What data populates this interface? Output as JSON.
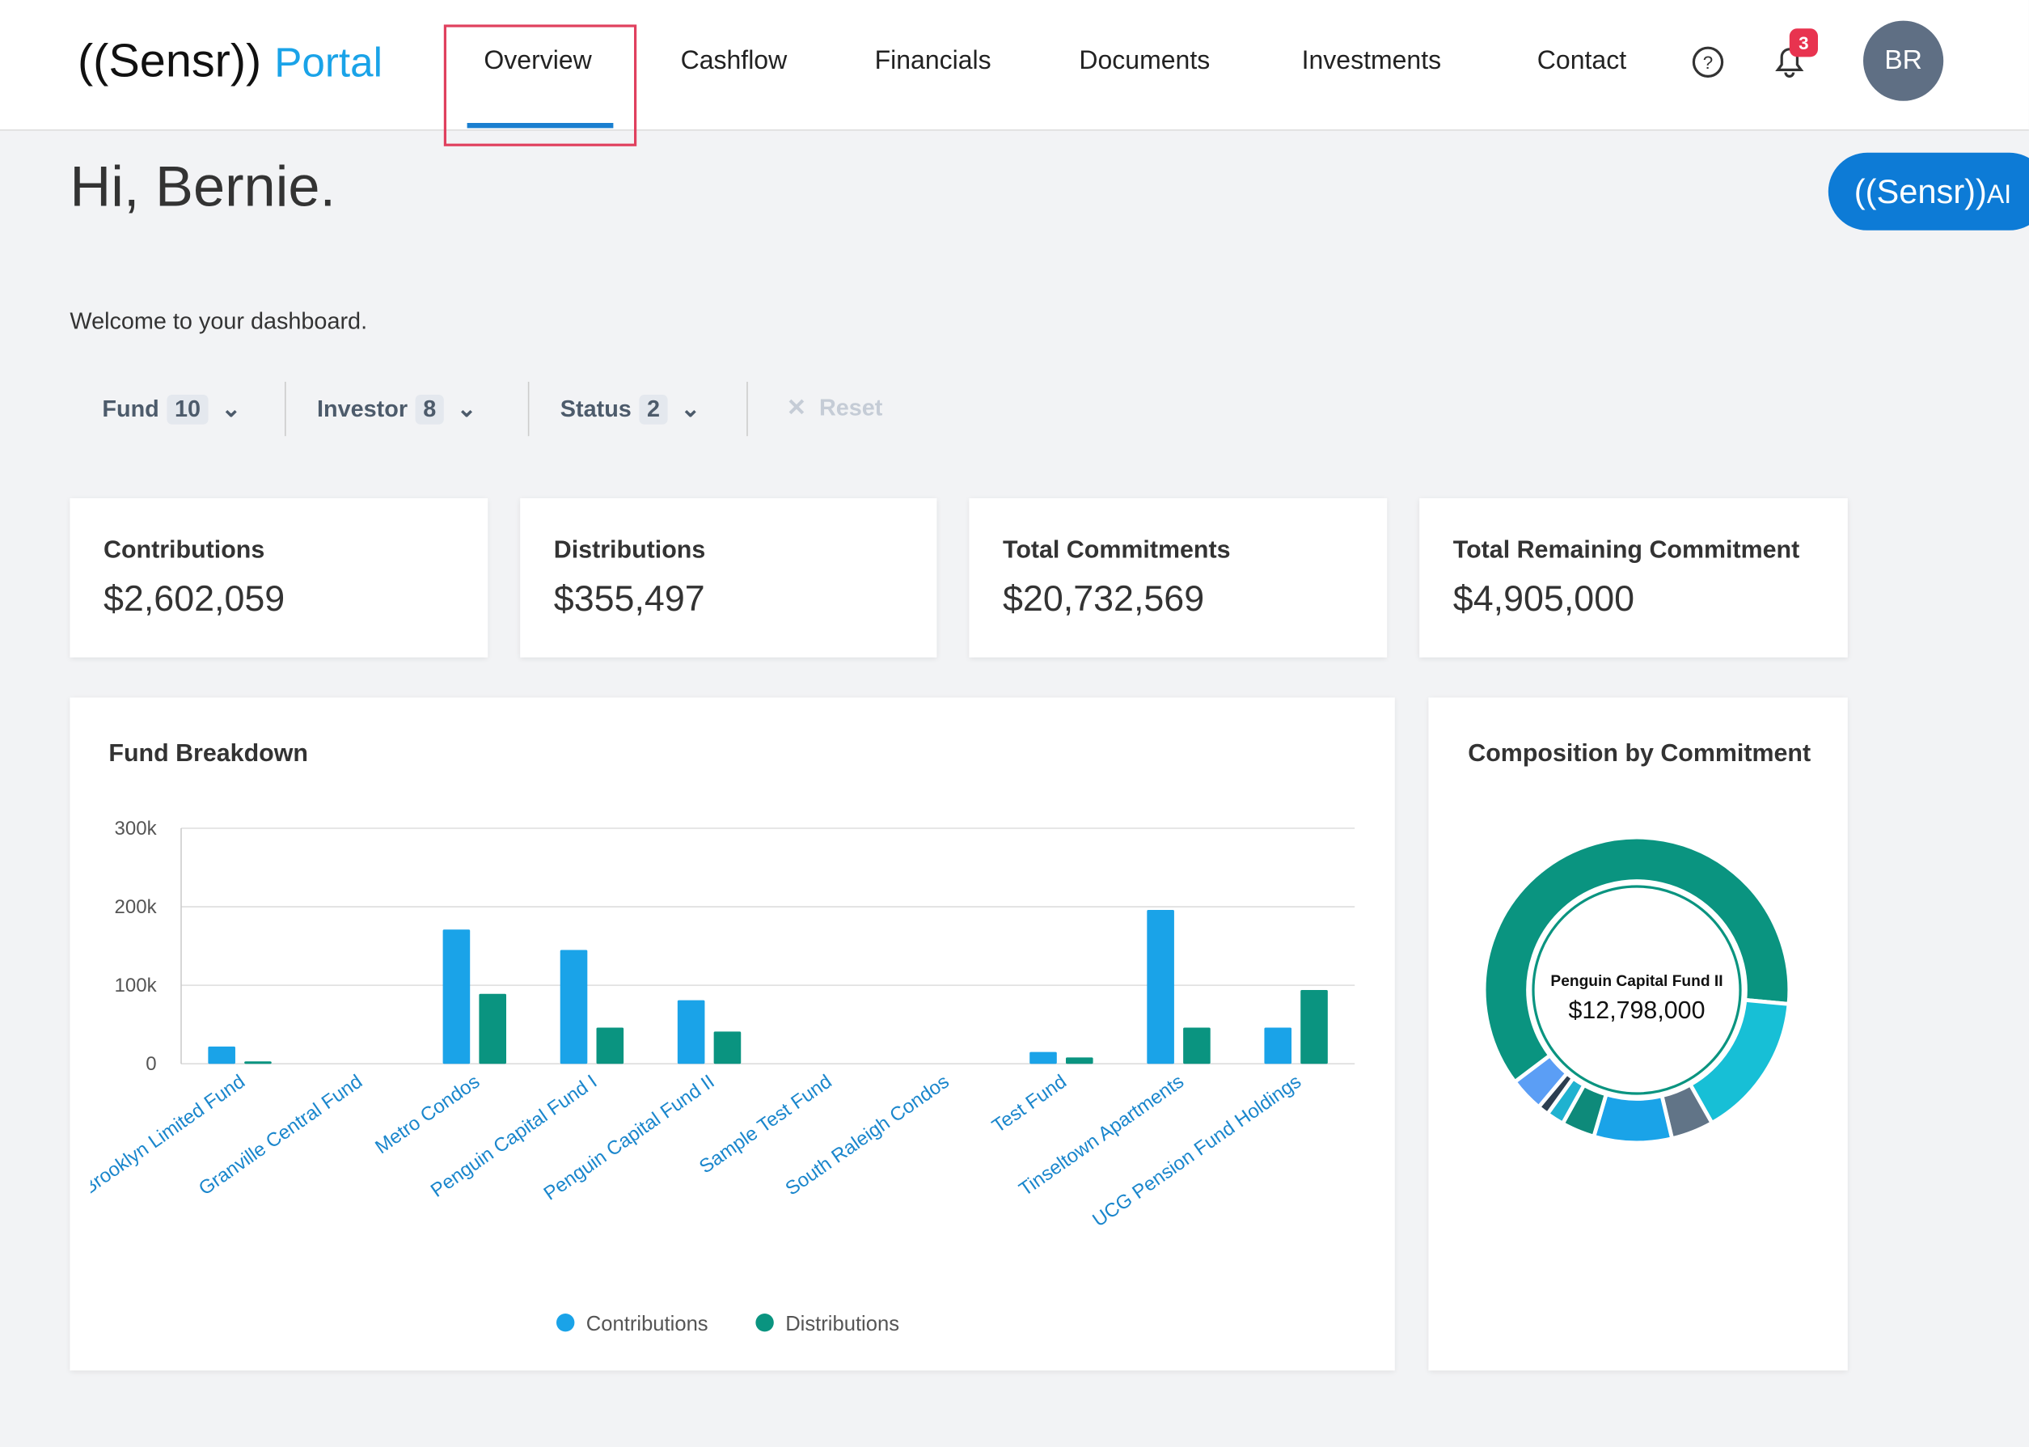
{
  "header": {
    "logo": "((Sensr))",
    "logo_suffix": "Portal",
    "nav": [
      "Overview",
      "Cashflow",
      "Financials",
      "Documents",
      "Investments",
      "Contact"
    ],
    "notifications": 3,
    "avatar": "BR"
  },
  "ai_button": {
    "logo": "((Sensr))",
    "label": "AI"
  },
  "greeting": "Hi, Bernie.",
  "welcome": "Welcome to your dashboard.",
  "filters": [
    {
      "label": "Fund",
      "count": 10
    },
    {
      "label": "Investor",
      "count": 8
    },
    {
      "label": "Status",
      "count": 2
    }
  ],
  "reset": "Reset",
  "kpis": [
    {
      "label": "Contributions",
      "value": "$2,602,059"
    },
    {
      "label": "Distributions",
      "value": "$355,497"
    },
    {
      "label": "Total Commitments",
      "value": "$20,732,569"
    },
    {
      "label": "Total Remaining Commitment",
      "value": "$4,905,000"
    }
  ],
  "chart_data": [
    {
      "type": "bar",
      "title": "Fund Breakdown",
      "categories": [
        "Brooklyn Limited Fund",
        "Granville Central Fund",
        "Metro Condos",
        "Penguin Capital Fund I",
        "Penguin Capital Fund II",
        "Sample Test Fund",
        "South Raleigh Condos",
        "Test Fund",
        "Tinseltown Apartments",
        "UCG Pension Fund Holdings"
      ],
      "series": [
        {
          "name": "Contributions",
          "color": "#1aa3e8",
          "values": [
            22000,
            0,
            171000,
            145000,
            81000,
            0,
            0,
            15000,
            196000,
            46000
          ]
        },
        {
          "name": "Distributions",
          "color": "#0a9480",
          "values": [
            3000,
            0,
            89000,
            46000,
            41000,
            0,
            0,
            8000,
            46000,
            94000
          ]
        }
      ],
      "ylim": [
        0,
        300000
      ],
      "yticks": [
        0,
        {
          "value": 100000,
          "label": "100k"
        },
        {
          "value": 200000,
          "label": "200k"
        },
        {
          "value": 300000,
          "label": "300k"
        }
      ],
      "grid": true,
      "legend": "bottom"
    },
    {
      "type": "pie",
      "title": "Composition by Commitment",
      "categories": [
        "Penguin Capital Fund II",
        null,
        null,
        null,
        null,
        null,
        null,
        null
      ],
      "values": [
        12798000,
        3180000,
        930000,
        1710000,
        730000,
        390000,
        240000,
        750000
      ],
      "value_labels": [
        "$12,798,000",
        null,
        null,
        null,
        null,
        null,
        null,
        null
      ],
      "colors": [
        "#0a9480",
        "#17bfd6",
        "#617487",
        "#1aa3e8",
        "#0e8a7a",
        "#1fb2d0",
        "#2c3e50",
        "#5b9ef5"
      ]
    }
  ]
}
